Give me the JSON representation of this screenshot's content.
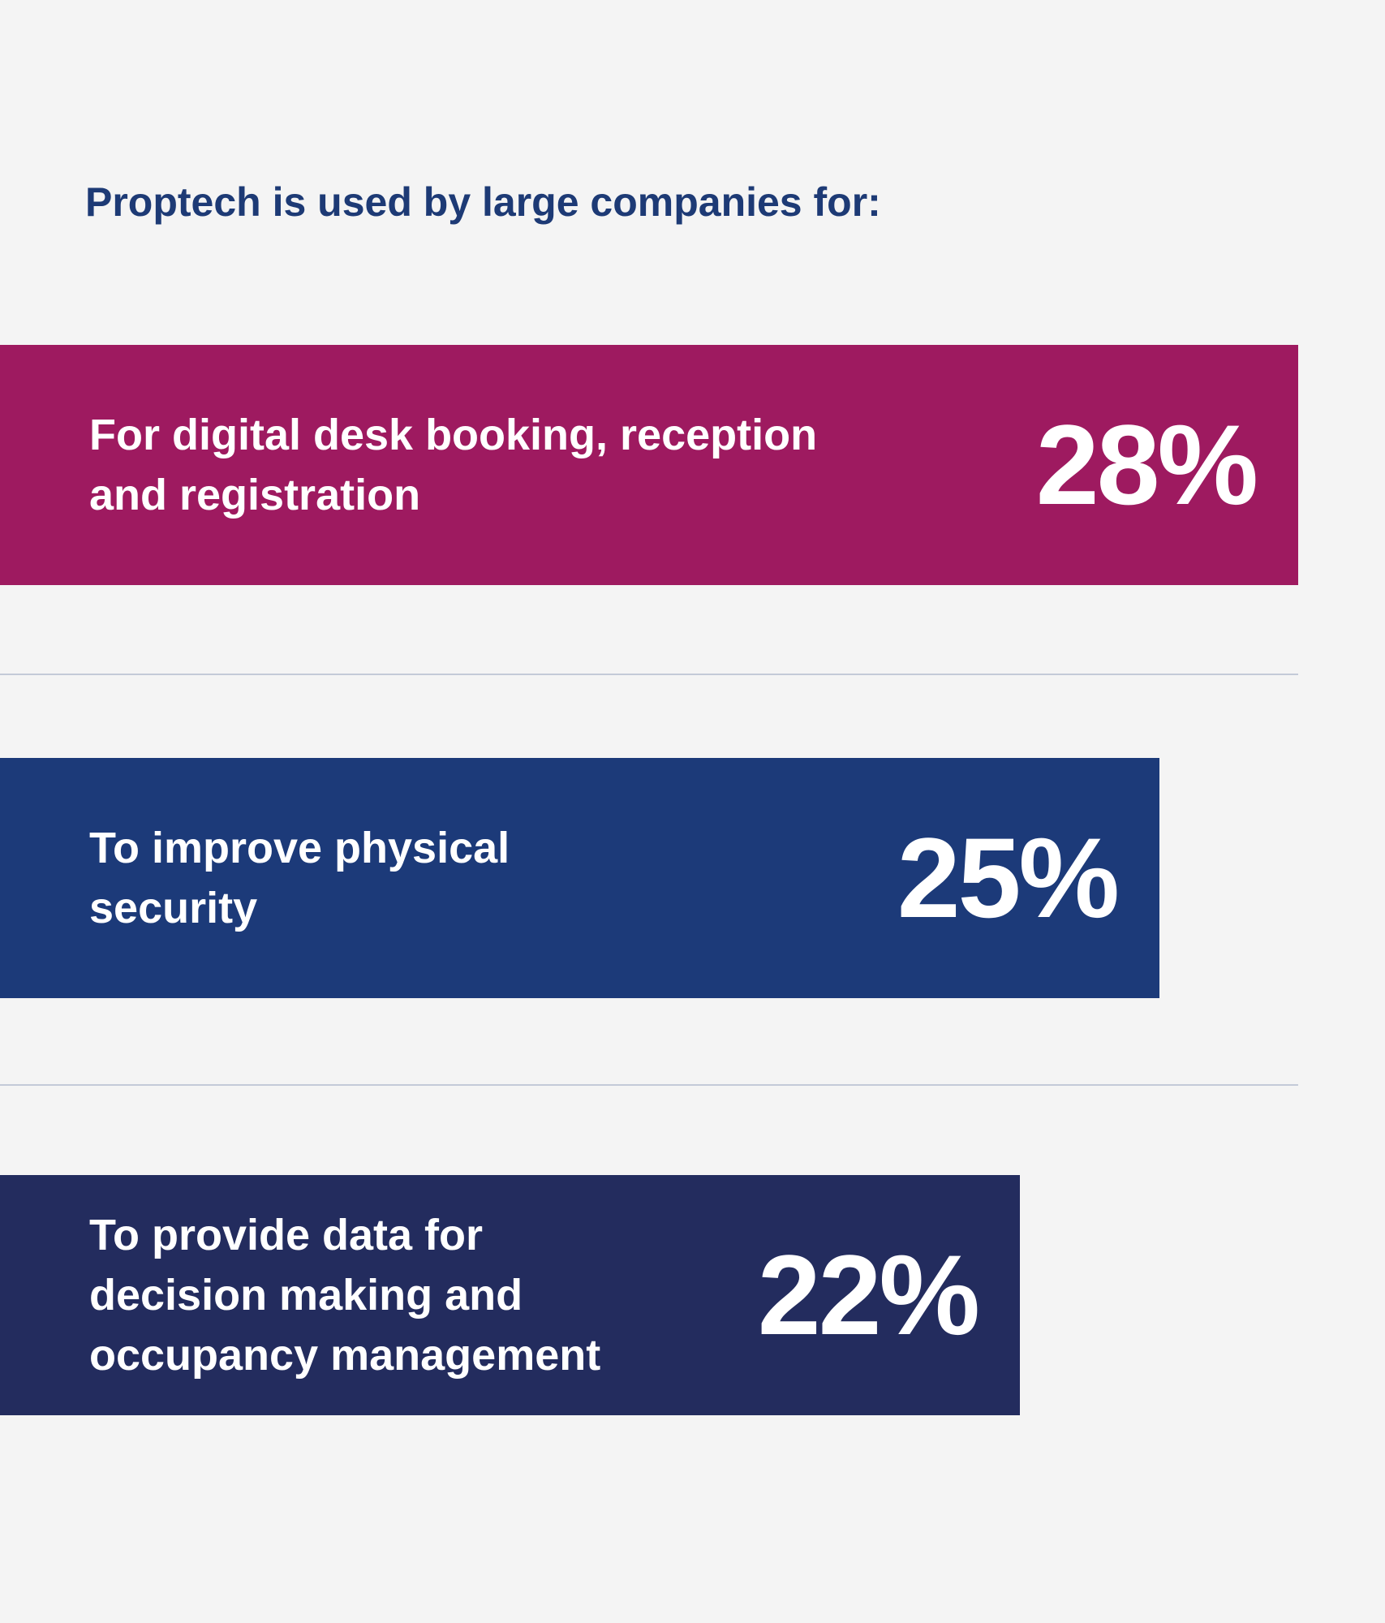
{
  "chart_data": {
    "type": "bar",
    "title": "Proptech is used by large companies for:",
    "categories": [
      "For digital desk booking, reception and registration",
      "To improve physical security",
      "To provide data for decision making and occupancy management"
    ],
    "values": [
      28,
      25,
      22
    ],
    "value_labels": [
      "28%",
      "25%",
      "22%"
    ],
    "unit": "%",
    "orientation": "horizontal",
    "colors": [
      "#9e1a60",
      "#1c3a79",
      "#232c5e"
    ],
    "divider_color": "#c3cad8",
    "background": "#f4f4f4"
  }
}
